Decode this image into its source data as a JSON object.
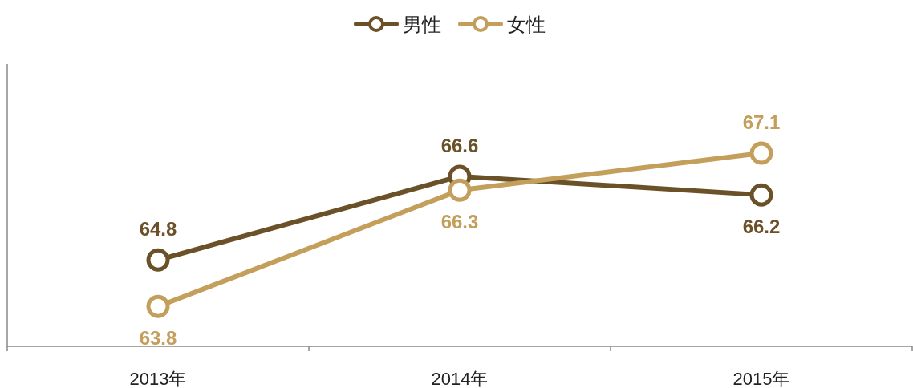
{
  "chart_data": {
    "type": "line",
    "categories": [
      "2013年",
      "2014年",
      "2015年"
    ],
    "series": [
      {
        "name": "男性",
        "color": "#6b5128",
        "values": [
          64.8,
          66.6,
          66.2
        ]
      },
      {
        "name": "女性",
        "color": "#c49f5c",
        "values": [
          63.8,
          66.3,
          67.1
        ]
      }
    ],
    "relative": false,
    "data_labels": true,
    "legend": "top",
    "marker": "circle",
    "line_style": "solid"
  }
}
